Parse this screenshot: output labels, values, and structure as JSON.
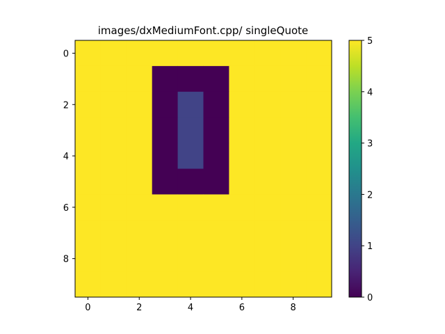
{
  "chart_data": {
    "type": "heatmap",
    "title": "images/dxMediumFont.cpp/ singleQuote",
    "colormap": "viridis",
    "vmin": 0,
    "vmax": 5,
    "x_ticks": [
      0,
      2,
      4,
      6,
      8
    ],
    "y_ticks": [
      0,
      2,
      4,
      6,
      8
    ],
    "colorbar_ticks": [
      0,
      1,
      2,
      3,
      4,
      5
    ],
    "grid": false,
    "values": [
      [
        5,
        5,
        5,
        5,
        5,
        5,
        5,
        5,
        5,
        5
      ],
      [
        5,
        5,
        5,
        0,
        0,
        0,
        5,
        5,
        5,
        5
      ],
      [
        5,
        5,
        5,
        0,
        1,
        0,
        5,
        5,
        5,
        5
      ],
      [
        5,
        5,
        5,
        0,
        1,
        0,
        5,
        5,
        5,
        5
      ],
      [
        5,
        5,
        5,
        0,
        1,
        0,
        5,
        5,
        5,
        5
      ],
      [
        5,
        5,
        5,
        0,
        0,
        0,
        5,
        5,
        5,
        5
      ],
      [
        5,
        5,
        5,
        5,
        5,
        5,
        5,
        5,
        5,
        5
      ],
      [
        5,
        5,
        5,
        5,
        5,
        5,
        5,
        5,
        5,
        5
      ],
      [
        5,
        5,
        5,
        5,
        5,
        5,
        5,
        5,
        5,
        5
      ],
      [
        5,
        5,
        5,
        5,
        5,
        5,
        5,
        5,
        5,
        5
      ]
    ]
  }
}
